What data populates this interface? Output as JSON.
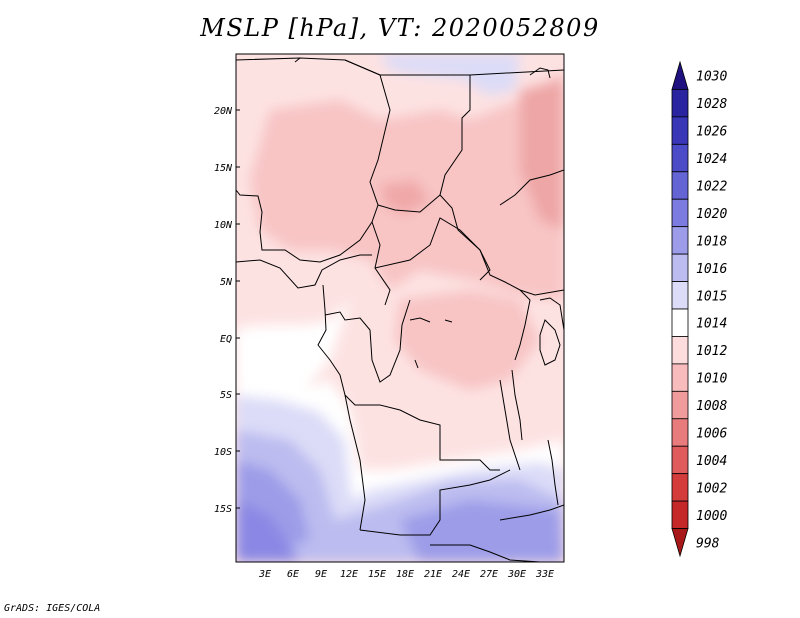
{
  "title": "MSLP [hPa], VT: 2020052809",
  "footer": "GrADS: IGES/COLA",
  "map": {
    "lon_range": [
      0,
      35
    ],
    "lat_range": [
      -20,
      24.5
    ],
    "lon_ticks": [
      "3E",
      "6E",
      "9E",
      "12E",
      "15E",
      "18E",
      "21E",
      "24E",
      "27E",
      "30E",
      "33E"
    ],
    "lat_ticks": [
      "20N",
      "15N",
      "10N",
      "5N",
      "EQ",
      "5S",
      "10S",
      "15S"
    ]
  },
  "colorbar": {
    "labels": [
      "1030",
      "1028",
      "1026",
      "1024",
      "1022",
      "1020",
      "1018",
      "1016",
      "1015",
      "1014",
      "1012",
      "1010",
      "1008",
      "1006",
      "1004",
      "1002",
      "1000",
      "998"
    ],
    "colors": [
      "#1f1280",
      "#2a24a0",
      "#3a36b8",
      "#4c4cc8",
      "#6464d4",
      "#7c7ce0",
      "#9c9ce8",
      "#bcbcf0",
      "#dcdcf8",
      "#ffffff",
      "#fcdcdc",
      "#f8bcbc",
      "#f09c9c",
      "#e87c7c",
      "#e05c5c",
      "#d43c3c",
      "#c42828",
      "#a81818"
    ]
  }
}
